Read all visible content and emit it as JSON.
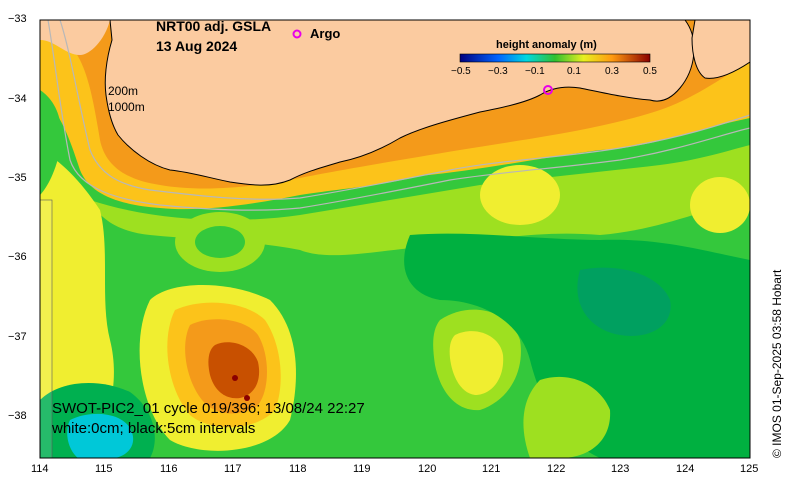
{
  "title": {
    "product": "NRT00 adj. GSLA",
    "date": "13 Aug 2024"
  },
  "legend": {
    "argo_symbol": "o",
    "argo_label": "Argo"
  },
  "colorbar": {
    "title": "height anomaly (m)",
    "ticks": [
      "−0.5",
      "−0.3",
      "−0.1",
      "0.1",
      "0.3",
      "0.5"
    ],
    "range": [
      -0.5,
      0.5
    ]
  },
  "isobaths": {
    "label_1": "200m",
    "label_2": "1000m"
  },
  "swot": {
    "line_1": "SWOT-PIC2_01 cycle 019/396; 13/08/24 22:27",
    "line_2": "white:0cm; black:5cm intervals"
  },
  "axes": {
    "x_ticks": [
      "114",
      "115",
      "116",
      "117",
      "118",
      "119",
      "120",
      "121",
      "122",
      "123",
      "124",
      "125"
    ],
    "y_ticks": [
      "−33",
      "−34",
      "−35",
      "−36",
      "−37",
      "−38"
    ],
    "lon_range": [
      114,
      125
    ],
    "lat_range": [
      -38.5,
      -33
    ]
  },
  "credit": "© IMOS 01-Sep-2025 03:58 Hobart",
  "colors": {
    "land": "#fbcba0",
    "argo_marker": "#e800e8",
    "strong_low": "#00c8d8",
    "low": "#00b040",
    "mid_low": "#34c83c",
    "zero": "#9ee020",
    "mid_high": "#f0ee30",
    "high": "#fcc31a",
    "higher": "#f49a1a",
    "highest": "#c85000"
  }
}
